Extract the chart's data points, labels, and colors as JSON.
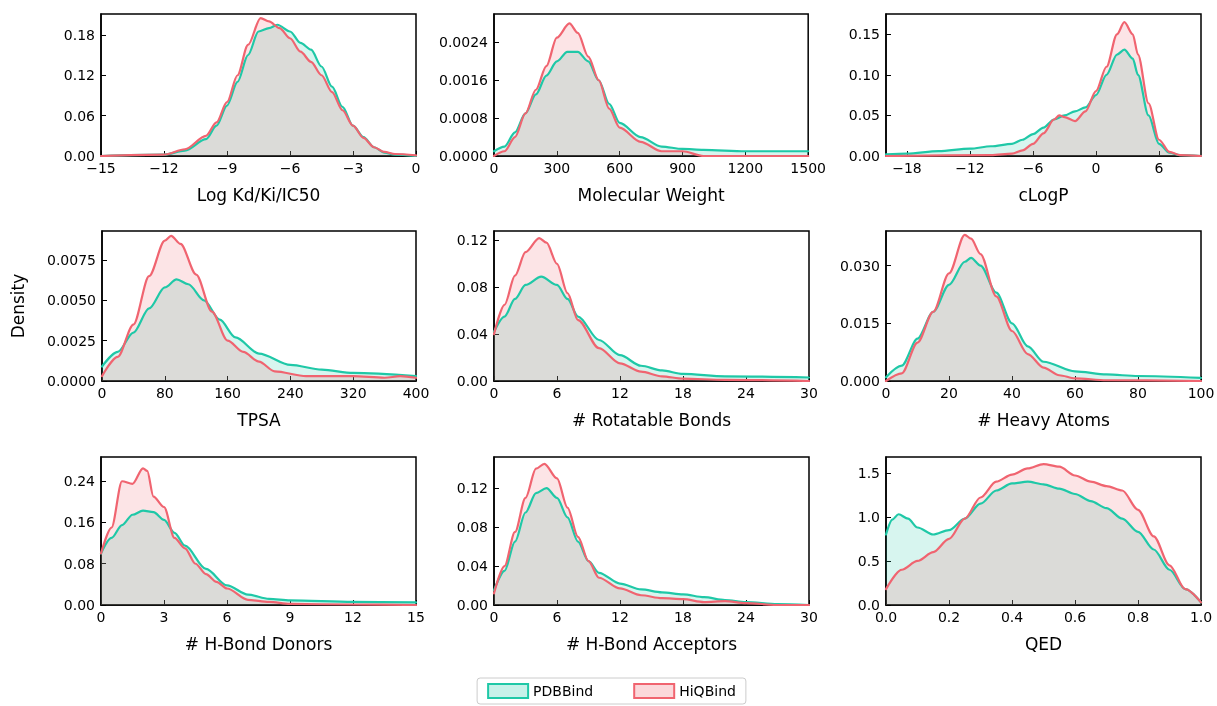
{
  "chart_data": [
    {
      "type": "area",
      "xlabel": "Log Kd/Ki/IC50",
      "xlim": [
        -15,
        0
      ],
      "xticks": [
        {
          "value": -15,
          "label": "−15"
        },
        {
          "value": -12,
          "label": "−12"
        },
        {
          "value": -9,
          "label": "−9"
        },
        {
          "value": -6,
          "label": "−6"
        },
        {
          "value": -3,
          "label": "−3"
        },
        0
      ],
      "ylim": [
        0,
        0.211
      ],
      "yticks": [
        {
          "value": 0,
          "label": "0.00"
        },
        0.06,
        0.12,
        0.18
      ],
      "series": [
        {
          "color": "#1fc8a7",
          "x": [
            -15,
            -12,
            -11,
            -10,
            -9.5,
            -9,
            -8.5,
            -8,
            -7.5,
            -7,
            -6.6,
            -6,
            -5.5,
            -5,
            -4.5,
            -4,
            -3.5,
            -3,
            -2.5,
            -2,
            -1.5,
            -1,
            0
          ],
          "values": [
            0,
            0.002,
            0.008,
            0.025,
            0.045,
            0.075,
            0.11,
            0.15,
            0.185,
            0.19,
            0.195,
            0.185,
            0.168,
            0.158,
            0.133,
            0.103,
            0.073,
            0.045,
            0.028,
            0.013,
            0.005,
            0.002,
            0
          ]
        },
        {
          "color": "#f06470",
          "x": [
            -15,
            -12,
            -11,
            -10,
            -9.5,
            -9,
            -8.5,
            -8,
            -7.4,
            -7,
            -6.5,
            -6,
            -5.5,
            -5,
            -4.5,
            -4,
            -3.5,
            -3,
            -2.5,
            -2,
            -1.5,
            -1,
            0
          ],
          "values": [
            0,
            0.002,
            0.01,
            0.03,
            0.05,
            0.08,
            0.12,
            0.165,
            0.205,
            0.2,
            0.19,
            0.175,
            0.155,
            0.14,
            0.12,
            0.095,
            0.068,
            0.045,
            0.027,
            0.013,
            0.006,
            0.003,
            0.001
          ]
        }
      ]
    },
    {
      "type": "area",
      "xlabel": "Molecular Weight",
      "xlim": [
        0,
        1500
      ],
      "xticks": [
        0,
        300,
        600,
        900,
        1200,
        1500
      ],
      "ylim": [
        0,
        0.003
      ],
      "yticks": [
        {
          "value": 0,
          "label": "0.0000"
        },
        {
          "value": 0.0008,
          "label": "0.0008"
        },
        {
          "value": 0.0016,
          "label": "0.0016"
        },
        {
          "value": 0.0024,
          "label": "0.0024"
        }
      ],
      "series": [
        {
          "color": "#1fc8a7",
          "x": [
            0,
            50,
            100,
            150,
            200,
            250,
            300,
            350,
            375,
            400,
            450,
            500,
            550,
            600,
            700,
            800,
            900,
            1000,
            1200,
            1500
          ],
          "values": [
            0.0001,
            0.0002,
            0.0005,
            0.0009,
            0.0013,
            0.0017,
            0.002,
            0.0022,
            0.0022,
            0.0022,
            0.002,
            0.0016,
            0.0011,
            0.0007,
            0.0004,
            0.0002,
            0.00015,
            0.00013,
            0.0001,
            0.0001
          ]
        },
        {
          "color": "#f06470",
          "x": [
            0,
            50,
            100,
            150,
            200,
            250,
            300,
            360,
            400,
            450,
            500,
            550,
            600,
            700,
            800,
            900,
            1000,
            1500
          ],
          "values": [
            0,
            0.0001,
            0.0004,
            0.0009,
            0.0014,
            0.0019,
            0.0025,
            0.0028,
            0.0026,
            0.0021,
            0.0016,
            0.001,
            0.0006,
            0.0003,
            0.0001,
            0.0001,
            0,
            0
          ]
        }
      ]
    },
    {
      "type": "area",
      "xlabel": "cLogP",
      "xlim": [
        -20,
        10
      ],
      "xticks": [
        {
          "value": -18,
          "label": "−18"
        },
        {
          "value": -12,
          "label": "−12"
        },
        {
          "value": -6,
          "label": "−6"
        },
        0,
        6
      ],
      "ylim": [
        0,
        0.175
      ],
      "yticks": [
        {
          "value": 0,
          "label": "0.00"
        },
        0.05,
        {
          "value": 0.1,
          "label": "0.10"
        },
        0.15
      ],
      "series": [
        {
          "color": "#1fc8a7",
          "x": [
            -20,
            -18,
            -15,
            -12,
            -10,
            -8,
            -7,
            -6,
            -5,
            -4,
            -3,
            -2,
            -1,
            0,
            1,
            2,
            2.7,
            3.5,
            4,
            5,
            6,
            7,
            8,
            10
          ],
          "values": [
            0.002,
            0.003,
            0.006,
            0.009,
            0.012,
            0.015,
            0.02,
            0.027,
            0.035,
            0.045,
            0.05,
            0.055,
            0.06,
            0.075,
            0.1,
            0.125,
            0.131,
            0.12,
            0.1,
            0.05,
            0.015,
            0.004,
            0.001,
            0
          ]
        },
        {
          "color": "#f06470",
          "x": [
            -20,
            -10,
            -8,
            -7,
            -6,
            -5,
            -4,
            -3.5,
            -3,
            -2,
            -1,
            0,
            1,
            2,
            2.7,
            3.5,
            4,
            5,
            6,
            7,
            8,
            10
          ],
          "values": [
            0,
            0.001,
            0.003,
            0.007,
            0.015,
            0.028,
            0.045,
            0.05,
            0.048,
            0.043,
            0.055,
            0.08,
            0.11,
            0.15,
            0.165,
            0.15,
            0.125,
            0.065,
            0.02,
            0.005,
            0.001,
            0
          ]
        }
      ]
    },
    {
      "type": "area",
      "xlabel": "TPSA",
      "ylabel": "Density",
      "xlim": [
        0,
        400
      ],
      "xticks": [
        0,
        80,
        160,
        240,
        320,
        400
      ],
      "ylim": [
        0,
        0.0093
      ],
      "yticks": [
        {
          "value": 0,
          "label": "0.0000"
        },
        0.0025,
        {
          "value": 0.005,
          "label": "0.0050"
        },
        0.0075
      ],
      "series": [
        {
          "color": "#1fc8a7",
          "x": [
            0,
            20,
            40,
            60,
            80,
            95,
            110,
            130,
            150,
            170,
            200,
            240,
            280,
            320,
            400
          ],
          "values": [
            0.0009,
            0.0018,
            0.003,
            0.0045,
            0.0058,
            0.0063,
            0.006,
            0.005,
            0.0038,
            0.0027,
            0.0017,
            0.001,
            0.0007,
            0.0005,
            0.0003
          ]
        },
        {
          "color": "#f06470",
          "x": [
            0,
            20,
            40,
            60,
            80,
            88,
            100,
            120,
            140,
            160,
            180,
            200,
            220,
            260,
            320,
            360,
            380,
            400
          ],
          "values": [
            0.0003,
            0.0015,
            0.0035,
            0.0065,
            0.0087,
            0.009,
            0.0085,
            0.0066,
            0.0043,
            0.0025,
            0.0018,
            0.0012,
            0.0006,
            0.0003,
            0.0003,
            0.0002,
            0.0003,
            0.0002
          ]
        }
      ]
    },
    {
      "type": "area",
      "xlabel": "# Rotatable Bonds",
      "xlim": [
        0,
        30
      ],
      "xticks": [
        0,
        6,
        12,
        18,
        24,
        30
      ],
      "ylim": [
        0,
        0.128
      ],
      "yticks": [
        {
          "value": 0,
          "label": "0.00"
        },
        0.04,
        0.08,
        0.12
      ],
      "series": [
        {
          "color": "#1fc8a7",
          "x": [
            0,
            1,
            2,
            3,
            4.5,
            6,
            7,
            8,
            10,
            12,
            14,
            16,
            18,
            22,
            30
          ],
          "values": [
            0.042,
            0.055,
            0.07,
            0.082,
            0.089,
            0.082,
            0.07,
            0.055,
            0.035,
            0.022,
            0.013,
            0.009,
            0.006,
            0.004,
            0.003
          ]
        },
        {
          "color": "#f06470",
          "x": [
            0,
            1,
            2,
            3,
            4.3,
            5,
            6,
            7,
            8,
            10,
            12,
            14,
            16,
            18,
            22,
            30
          ],
          "values": [
            0.04,
            0.065,
            0.09,
            0.11,
            0.122,
            0.118,
            0.1,
            0.075,
            0.052,
            0.028,
            0.015,
            0.008,
            0.004,
            0.002,
            0.001,
            0
          ]
        }
      ]
    },
    {
      "type": "area",
      "xlabel": "# Heavy Atoms",
      "xlim": [
        0,
        100
      ],
      "xticks": [
        0,
        20,
        40,
        60,
        80,
        100
      ],
      "ylim": [
        0,
        0.039
      ],
      "yticks": [
        {
          "value": 0,
          "label": "0.000"
        },
        0.015,
        {
          "value": 0.03,
          "label": "0.030"
        }
      ],
      "series": [
        {
          "color": "#1fc8a7",
          "x": [
            0,
            5,
            10,
            15,
            20,
            25,
            27,
            30,
            35,
            40,
            45,
            50,
            60,
            70,
            80,
            100
          ],
          "values": [
            0.001,
            0.004,
            0.011,
            0.018,
            0.025,
            0.031,
            0.032,
            0.03,
            0.023,
            0.015,
            0.009,
            0.005,
            0.0025,
            0.0017,
            0.0013,
            0.0008
          ]
        },
        {
          "color": "#f06470",
          "x": [
            0,
            5,
            10,
            15,
            20,
            25,
            27,
            30,
            35,
            40,
            45,
            50,
            55,
            60,
            70,
            100
          ],
          "values": [
            0,
            0.002,
            0.01,
            0.018,
            0.028,
            0.038,
            0.037,
            0.033,
            0.022,
            0.013,
            0.007,
            0.0035,
            0.0015,
            0.0007,
            0.0002,
            0
          ]
        }
      ]
    },
    {
      "type": "area",
      "xlabel": "# H-Bond Donors",
      "xlim": [
        0,
        15
      ],
      "xticks": [
        0,
        3,
        6,
        9,
        12,
        15
      ],
      "ylim": [
        0,
        0.287
      ],
      "yticks": [
        {
          "value": 0,
          "label": "0.00"
        },
        0.08,
        0.16,
        0.24
      ],
      "series": [
        {
          "color": "#1fc8a7",
          "x": [
            0,
            0.5,
            1,
            1.5,
            2,
            2.5,
            3,
            3.5,
            4,
            5,
            6,
            7,
            8,
            9,
            12,
            15
          ],
          "values": [
            0.1,
            0.13,
            0.155,
            0.175,
            0.183,
            0.18,
            0.165,
            0.14,
            0.115,
            0.07,
            0.038,
            0.02,
            0.012,
            0.009,
            0.006,
            0.005
          ]
        },
        {
          "color": "#f06470",
          "x": [
            0,
            0.5,
            1,
            1.5,
            2,
            2.2,
            2.5,
            3,
            3.5,
            4,
            4.5,
            5,
            5.5,
            6,
            7,
            8,
            9,
            12,
            15
          ],
          "values": [
            0.1,
            0.15,
            0.24,
            0.235,
            0.265,
            0.26,
            0.21,
            0.19,
            0.13,
            0.11,
            0.08,
            0.06,
            0.045,
            0.032,
            0.01,
            0.006,
            0.002,
            0.001,
            0
          ]
        }
      ]
    },
    {
      "type": "area",
      "xlabel": "# H-Bond Acceptors",
      "legend": "bottom",
      "xlim": [
        0,
        30
      ],
      "xticks": [
        0,
        6,
        12,
        18,
        24,
        30
      ],
      "ylim": [
        0,
        0.152
      ],
      "yticks": [
        {
          "value": 0,
          "label": "0.00"
        },
        0.04,
        0.08,
        0.12
      ],
      "series": [
        {
          "name": "PDBBind",
          "color": "#1fc8a7",
          "x": [
            0,
            1,
            2,
            3,
            4,
            5,
            6,
            7,
            8,
            9,
            10,
            12,
            14,
            16,
            18,
            20,
            22,
            24,
            27,
            30
          ],
          "values": [
            0.015,
            0.035,
            0.065,
            0.095,
            0.115,
            0.12,
            0.11,
            0.09,
            0.065,
            0.045,
            0.033,
            0.022,
            0.016,
            0.013,
            0.011,
            0.008,
            0.005,
            0.003,
            0.001,
            0
          ]
        },
        {
          "name": "HiQBind",
          "color": "#f06470",
          "x": [
            0,
            1,
            2,
            3,
            4,
            4.8,
            6,
            7,
            8,
            9,
            10,
            12,
            14,
            16,
            18,
            20,
            22,
            24,
            27,
            30
          ],
          "values": [
            0.012,
            0.04,
            0.075,
            0.11,
            0.14,
            0.145,
            0.13,
            0.1,
            0.07,
            0.045,
            0.028,
            0.017,
            0.01,
            0.007,
            0.006,
            0.003,
            0.004,
            0.002,
            0,
            0
          ]
        }
      ]
    },
    {
      "type": "area",
      "xlabel": "QED",
      "xlim": [
        0,
        1
      ],
      "xticks": [
        {
          "value": 0,
          "label": "0.0"
        },
        0.2,
        0.4,
        0.6,
        0.8,
        {
          "value": 1,
          "label": "1.0"
        }
      ],
      "ylim": [
        0,
        1.68
      ],
      "yticks": [
        {
          "value": 0,
          "label": "0.0"
        },
        0.5,
        {
          "value": 1,
          "label": "1.0"
        },
        1.5
      ],
      "series": [
        {
          "color": "#1fc8a7",
          "x": [
            0,
            0.02,
            0.04,
            0.07,
            0.1,
            0.15,
            0.2,
            0.25,
            0.3,
            0.35,
            0.4,
            0.45,
            0.5,
            0.55,
            0.6,
            0.65,
            0.7,
            0.75,
            0.8,
            0.85,
            0.9,
            0.95,
            1
          ],
          "values": [
            0.8,
            0.97,
            1.03,
            0.98,
            0.88,
            0.8,
            0.85,
            0.98,
            1.15,
            1.3,
            1.38,
            1.4,
            1.37,
            1.32,
            1.26,
            1.18,
            1.1,
            0.98,
            0.83,
            0.63,
            0.4,
            0.18,
            0.03
          ]
        },
        {
          "color": "#f06470",
          "x": [
            0,
            0.05,
            0.1,
            0.15,
            0.2,
            0.25,
            0.3,
            0.35,
            0.4,
            0.45,
            0.5,
            0.55,
            0.6,
            0.65,
            0.7,
            0.75,
            0.8,
            0.85,
            0.9,
            0.95,
            1
          ],
          "values": [
            0.18,
            0.4,
            0.5,
            0.6,
            0.75,
            0.98,
            1.22,
            1.4,
            1.48,
            1.55,
            1.6,
            1.57,
            1.47,
            1.4,
            1.35,
            1.3,
            1.08,
            0.78,
            0.45,
            0.18,
            0.03
          ]
        }
      ]
    }
  ]
}
